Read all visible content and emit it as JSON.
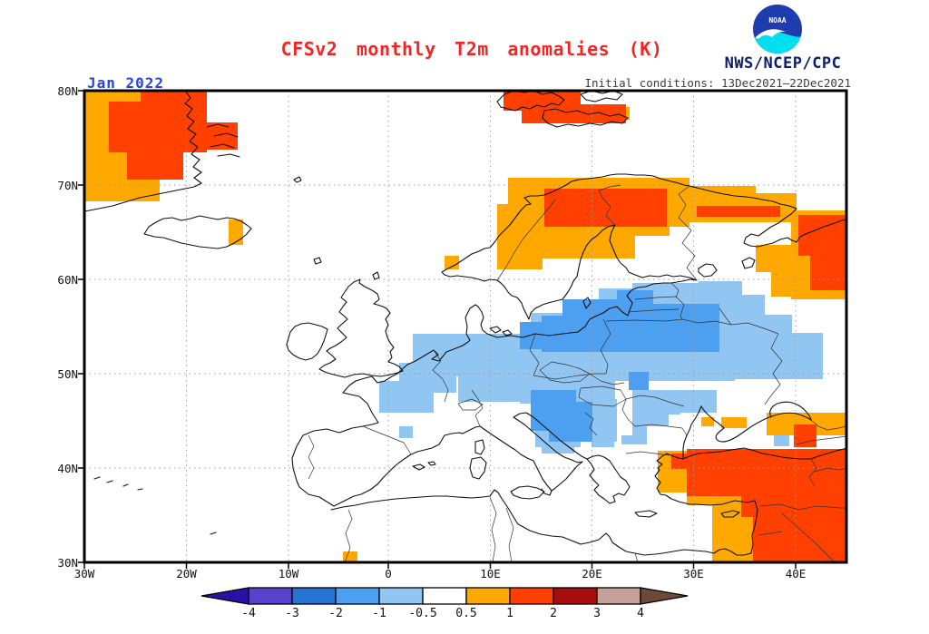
{
  "header": {
    "title": "CFSv2 monthly T2m anomalies (K)",
    "org": "NWS/NCEP/CPC",
    "logo_text": "NOAA",
    "initial_conditions": "Initial conditions: 13Dec2021–22Dec2021",
    "date_label": "Jan 2022"
  },
  "colors": {
    "title_red": "#f42424",
    "date_blue": "#2742ea",
    "org_navy": "#0c1c6e",
    "init_gray": "#3c3c3c",
    "logo_navy": "#1e3cae",
    "logo_cyan": "#00dff0",
    "gridline": "#9a9a9a",
    "coastline": "#111111",
    "border": "#333333"
  },
  "map": {
    "lat_labels": [
      "80N",
      "70N",
      "60N",
      "50N",
      "40N",
      "30N"
    ],
    "lon_labels": [
      "30W",
      "20W",
      "10W",
      "0",
      "10E",
      "20E",
      "30E",
      "40E"
    ]
  },
  "colorbar": {
    "tick_labels": [
      "-4",
      "-3",
      "-2",
      "-1",
      "-0.5",
      "0.5",
      "1",
      "2",
      "3",
      "4"
    ],
    "segment_colors": [
      "#5742ce",
      "#2673d2",
      "#4d9ff0",
      "#92c6f2",
      "#ffffff",
      "#ffa800",
      "#ff4000",
      "#a80d0d",
      "#c7a097"
    ],
    "arrow_left_color": "#2b0fa6",
    "arrow_right_color": "#6f4938"
  },
  "chart_data": {
    "type": "heatmap",
    "title": "CFSv2 monthly T2m anomalies (K)",
    "units": "K",
    "forecast_month": "Jan 2022",
    "initial_conditions": "13Dec2021-22Dec2021",
    "source": "NWS/NCEP/CPC",
    "lon_range": [
      -30,
      45
    ],
    "lat_range": [
      30,
      80
    ],
    "levels": [
      -4,
      -3,
      -2,
      -1,
      -0.5,
      0.5,
      1,
      2,
      3,
      4
    ],
    "legend_position": "bottom",
    "grid": "dotted 10-degree graticule",
    "regions": [
      {
        "area": "SE Greenland",
        "anomaly_K": "+1 to +2 core, +0.5 to +1 fringe"
      },
      {
        "area": "Svalbard",
        "anomaly_K": "+1 to +2"
      },
      {
        "area": "N Scandinavia / Kola Peninsula",
        "anomaly_K": "+1 to +2 core, +0.5 to +1 fringe"
      },
      {
        "area": "NE European Russia (White Sea region)",
        "anomaly_K": "+1 to +2 core, +0.5 to +1 fringe"
      },
      {
        "area": "Central & Eastern Europe (Germany-Poland-Belarus-Ukraine)",
        "anomaly_K": "-1 to -2 core, -0.5 to -1 fringe"
      },
      {
        "area": "Balkans / Carpathians",
        "anomaly_K": "-0.5 to -2"
      },
      {
        "area": "E Iceland coast",
        "anomaly_K": "+0.5 to +1"
      },
      {
        "area": "SW Norway coast spot",
        "anomaly_K": "+0.5 to +1"
      },
      {
        "area": "Turkey / Caucasus / N Middle East",
        "anomaly_K": "+1 to +2 core, +0.5 to +1 fringe"
      },
      {
        "area": "N Algeria coast spot",
        "anomaly_K": "+0.5 to +1"
      },
      {
        "area": "UK, Ireland, Iberia, Italy, W Mediterranean",
        "anomaly_K": "-0.5 to +0.5 (neutral)"
      }
    ]
  }
}
